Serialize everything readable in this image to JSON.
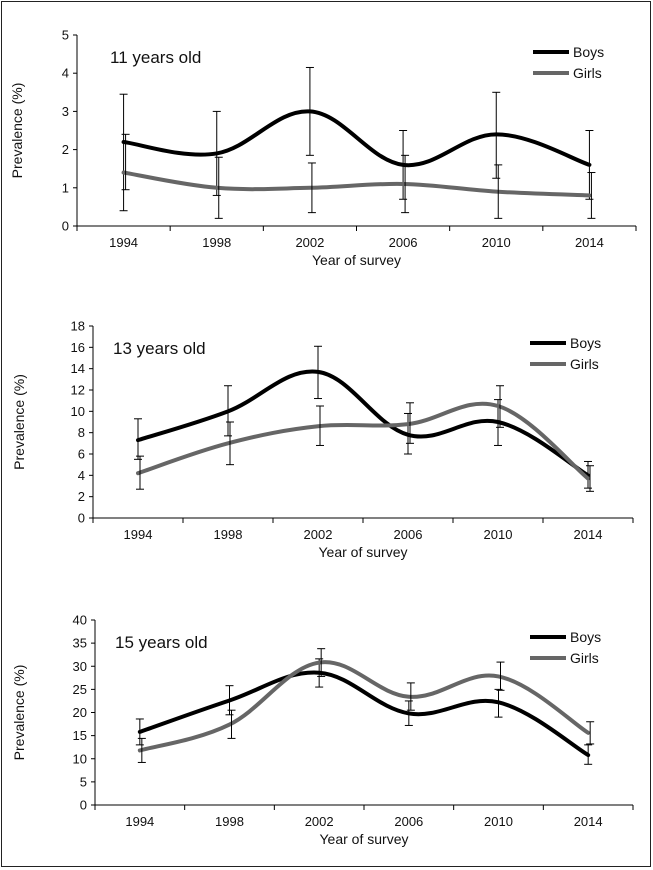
{
  "chart_data": [
    {
      "type": "line",
      "title": "11 years old",
      "xlabel": "Year of survey",
      "ylabel": "Prevalence (%)",
      "categories": [
        "1994",
        "1998",
        "2002",
        "2006",
        "2010",
        "2014"
      ],
      "ylim": [
        0,
        5
      ],
      "yticks": [
        0,
        1,
        2,
        3,
        4,
        5
      ],
      "legend_position": "top-right",
      "series": [
        {
          "name": "Boys",
          "color": "#000000",
          "values": [
            2.2,
            1.9,
            3.0,
            1.6,
            2.4,
            1.6
          ],
          "err_low": [
            0.4,
            0.8,
            1.85,
            0.7,
            1.25,
            0.7
          ],
          "err_high": [
            3.45,
            3.0,
            4.15,
            2.5,
            3.5,
            2.5
          ]
        },
        {
          "name": "Girls",
          "color": "#666666",
          "values": [
            1.4,
            1.0,
            1.0,
            1.1,
            0.9,
            0.8
          ],
          "err_low": [
            0.95,
            0.2,
            0.35,
            0.35,
            0.2,
            0.2
          ],
          "err_high": [
            2.4,
            1.8,
            1.65,
            1.85,
            1.6,
            1.4
          ]
        }
      ]
    },
    {
      "type": "line",
      "title": "13 years old",
      "xlabel": "Year of survey",
      "ylabel": "Prevalence (%)",
      "categories": [
        "1994",
        "1998",
        "2002",
        "2006",
        "2010",
        "2014"
      ],
      "ylim": [
        0,
        18
      ],
      "yticks": [
        0,
        2,
        4,
        6,
        8,
        10,
        12,
        14,
        16,
        18
      ],
      "legend_position": "top-right",
      "series": [
        {
          "name": "Boys",
          "color": "#000000",
          "values": [
            7.3,
            10.0,
            13.7,
            7.8,
            9.0,
            4.0
          ],
          "err_low": [
            5.5,
            7.7,
            11.2,
            6.0,
            6.8,
            2.8
          ],
          "err_high": [
            9.3,
            12.4,
            16.1,
            9.8,
            11.1,
            5.3
          ]
        },
        {
          "name": "Girls",
          "color": "#666666",
          "values": [
            4.2,
            7.0,
            8.6,
            8.8,
            10.5,
            3.7
          ],
          "err_low": [
            2.7,
            5.0,
            6.8,
            7.0,
            8.5,
            2.5
          ],
          "err_high": [
            5.8,
            9.0,
            10.5,
            10.8,
            12.4,
            4.9
          ]
        }
      ]
    },
    {
      "type": "line",
      "title": "15 years old",
      "xlabel": "Year of survey",
      "ylabel": "Prevalence (%)",
      "categories": [
        "1994",
        "1998",
        "2002",
        "2006",
        "2010",
        "2014"
      ],
      "ylim": [
        0,
        40
      ],
      "yticks": [
        0,
        5,
        10,
        15,
        20,
        25,
        30,
        35,
        40
      ],
      "legend_position": "top-right",
      "series": [
        {
          "name": "Boys",
          "color": "#000000",
          "values": [
            15.8,
            22.6,
            28.6,
            19.8,
            22.2,
            10.8
          ],
          "err_low": [
            13.0,
            19.5,
            25.5,
            17.2,
            19.0,
            8.8
          ],
          "err_high": [
            18.6,
            25.8,
            31.6,
            22.5,
            25.0,
            13.0
          ]
        },
        {
          "name": "Girls",
          "color": "#666666",
          "values": [
            11.8,
            17.4,
            30.8,
            23.4,
            27.8,
            15.6
          ],
          "err_low": [
            9.2,
            14.4,
            27.8,
            20.5,
            24.8,
            13.2
          ],
          "err_high": [
            14.4,
            20.5,
            33.8,
            26.4,
            30.9,
            18.0
          ]
        }
      ]
    }
  ]
}
